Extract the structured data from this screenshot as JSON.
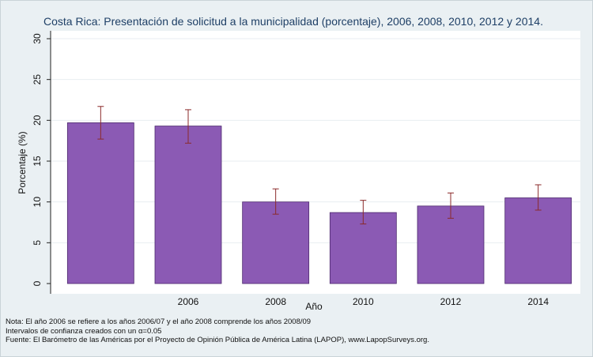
{
  "chart_data": {
    "type": "bar",
    "title": "Costa Rica: Presentación de solicitud a la municipalidad (porcentaje), 2006, 2008, 2010, 2012 y 2014.",
    "xlabel": "Año",
    "ylabel": "Porcentaje (%)",
    "categories": [
      "",
      "2006",
      "2008",
      "2010",
      "2012",
      "2014"
    ],
    "values": [
      19.7,
      19.3,
      10.0,
      8.7,
      9.5,
      10.5
    ],
    "ci_low": [
      17.7,
      17.2,
      8.5,
      7.3,
      8.0,
      9.0
    ],
    "ci_high": [
      21.7,
      21.3,
      11.6,
      10.2,
      11.1,
      12.1
    ],
    "ylim": [
      0,
      30
    ],
    "yticks": [
      0,
      5,
      10,
      15,
      20,
      25,
      30
    ],
    "grid": true,
    "colors": {
      "bar": "#8b5ab4",
      "bar_edge": "#4d2a6e",
      "error_bar": "#8b2a2a",
      "plot_bg": "#ffffff",
      "frame_bg": "#eaf0f3",
      "title": "#1e3f66"
    }
  },
  "notes": [
    "Nota: El año 2006 se refiere a los años 2006/07 y el año 2008 comprende los años 2008/09",
    "Intervalos de confianza creados con un α=0.05",
    "Fuente: El Barómetro de las Américas por el Proyecto de Opinión Pública de América Latina (LAPOP), www.LapopSurveys.org."
  ]
}
